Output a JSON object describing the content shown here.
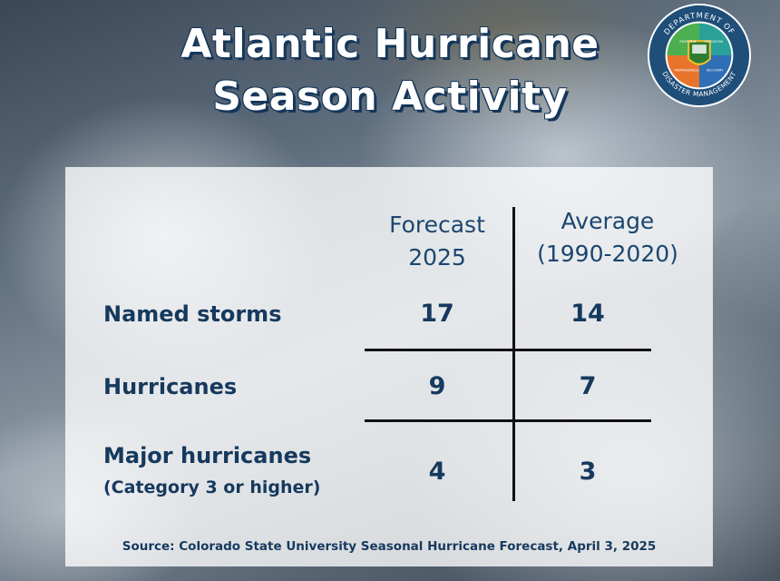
{
  "header": {
    "title_line1": "Atlantic Hurricane",
    "title_line2": "Season Activity"
  },
  "logo": {
    "text_top": "DEPARTMENT OF",
    "text_bottom": "DISASTER MANAGEMENT",
    "quadrants": [
      "RESPONSE",
      "MITIGATION",
      "PREPAREDNESS",
      "RECOVERY"
    ],
    "colors": {
      "ring": "#1f4e79",
      "green": "#4caf50",
      "teal": "#2aa198",
      "orange": "#e8742c",
      "blue": "#2f6fb5"
    }
  },
  "table": {
    "columns": [
      {
        "line1": "Forecast",
        "line2": "2025"
      },
      {
        "line1": "Average",
        "line2": "(1990-2020)"
      }
    ],
    "rows": [
      {
        "label": "Named storms",
        "sub": "",
        "forecast": "17",
        "average": "14"
      },
      {
        "label": "Hurricanes",
        "sub": "",
        "forecast": "9",
        "average": "7"
      },
      {
        "label": "Major hurricanes",
        "sub": "(Category 3 or higher)",
        "forecast": "4",
        "average": "3"
      }
    ]
  },
  "source": "Source: Colorado State University Seasonal Hurricane Forecast, April 3, 2025"
}
